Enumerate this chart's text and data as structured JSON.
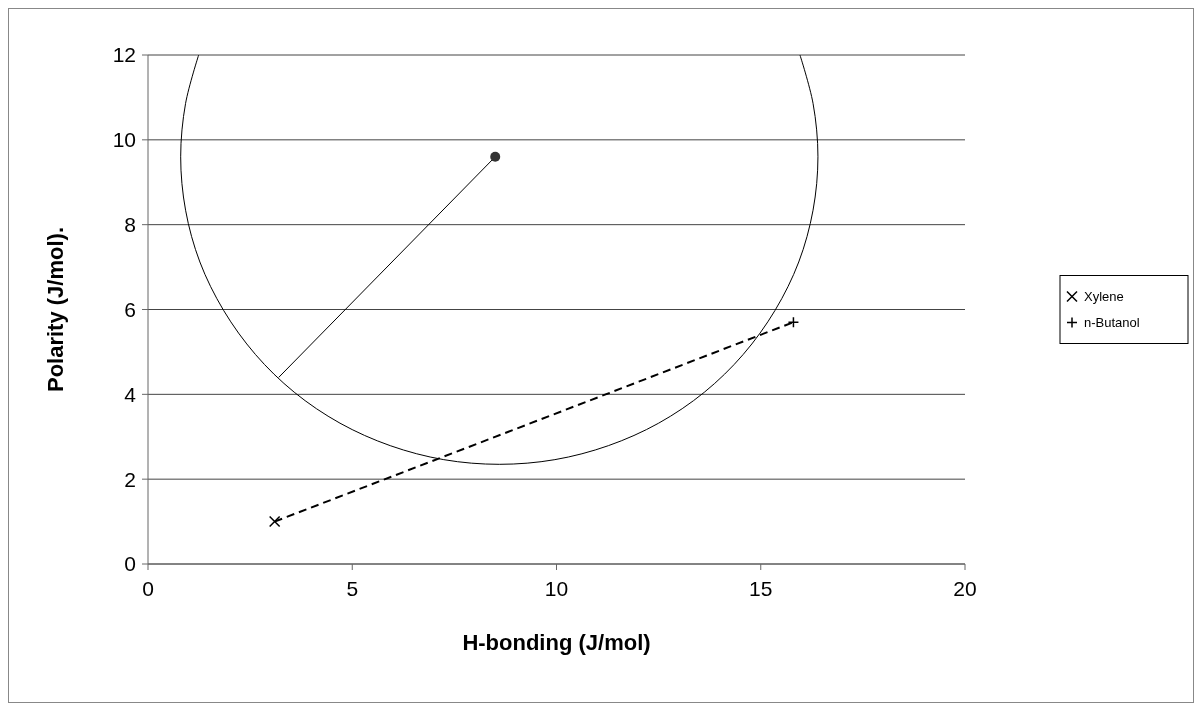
{
  "chart_data": {
    "type": "scatter",
    "xlabel": "H-bonding (J/mol)",
    "ylabel": "Polarity (J/mol).",
    "xlim": [
      0,
      20
    ],
    "xticks": [
      0,
      5,
      10,
      15,
      20
    ],
    "ylim": [
      0,
      12
    ],
    "yticks": [
      0,
      2,
      4,
      6,
      8,
      10,
      12
    ],
    "grid": "y",
    "legend": "right",
    "series": [
      {
        "name": "Xylene",
        "marker": "cross",
        "color": "#000000",
        "x": [
          3.1
        ],
        "values": [
          1.0
        ]
      },
      {
        "name": "n-Butanol",
        "marker": "plus",
        "color": "#000000",
        "x": [
          15.8
        ],
        "values": [
          5.7
        ]
      },
      {
        "marker": "circle",
        "color": "#333333",
        "x": [
          8.5
        ],
        "values": [
          9.6
        ]
      },
      {
        "type": "line",
        "marker": "none",
        "line_style": "dashed",
        "color": "#000000",
        "x": [
          3.1,
          15.8
        ],
        "values": [
          1.0,
          5.7
        ]
      },
      {
        "type": "line",
        "marker": "none",
        "line_style": "solid",
        "color": "#000000",
        "x": [
          8.5,
          3.2
        ],
        "values": [
          9.6,
          4.4
        ]
      },
      {
        "type": "line",
        "marker": "none",
        "line_style": "solid",
        "color": "#000000",
        "x": [
          1.24,
          0.92,
          0.8,
          0.92,
          1.27,
          1.85,
          2.63,
          3.58,
          4.7,
          5.93,
          7.24,
          8.6,
          9.96,
          11.27,
          12.5,
          13.62,
          14.57,
          15.35,
          15.93,
          16.28,
          16.4,
          16.28,
          15.96
        ],
        "values": [
          12,
          10.86,
          9.6,
          8.34,
          7.12,
          5.98,
          4.94,
          4.05,
          3.32,
          2.79,
          2.46,
          2.35,
          2.46,
          2.79,
          3.32,
          4.05,
          4.94,
          5.98,
          7.12,
          8.34,
          9.6,
          10.86,
          12
        ]
      }
    ]
  }
}
